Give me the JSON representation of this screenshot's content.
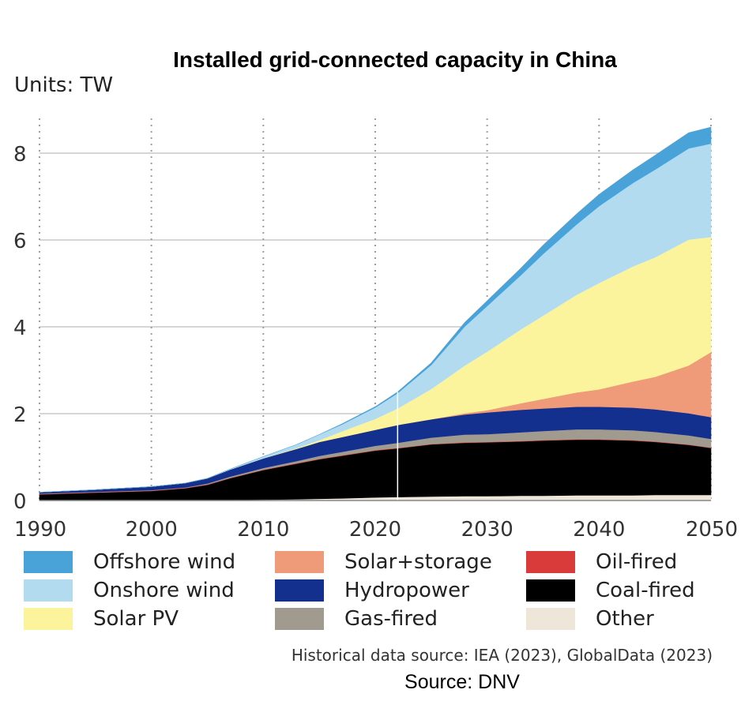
{
  "title": "Installed grid-connected capacity in China",
  "units": "Units: TW",
  "historical_note": "Historical data source: IEA (2023), GlobalData (2023)",
  "source": "Source: DNV",
  "chart_data": {
    "type": "area",
    "stacked": true,
    "title": "Installed grid-connected capacity in China",
    "ylabel": "TW",
    "xlim": [
      1990,
      2050
    ],
    "ylim": [
      0,
      8.8
    ],
    "x_ticks": [
      1990,
      2000,
      2010,
      2020,
      2030,
      2040,
      2050
    ],
    "y_ticks": [
      0,
      2,
      4,
      6,
      8
    ],
    "history_end": 2022,
    "x": [
      1990,
      1995,
      2000,
      2003,
      2005,
      2007,
      2010,
      2013,
      2015,
      2017,
      2020,
      2022,
      2025,
      2028,
      2030,
      2033,
      2035,
      2038,
      2040,
      2043,
      2045,
      2048,
      2050
    ],
    "series": [
      {
        "name": "Other",
        "color": "#efe6da",
        "values": [
          0,
          0,
          0,
          0,
          0,
          0.01,
          0.02,
          0.03,
          0.04,
          0.05,
          0.07,
          0.08,
          0.09,
          0.1,
          0.1,
          0.11,
          0.11,
          0.12,
          0.12,
          0.12,
          0.13,
          0.13,
          0.13
        ]
      },
      {
        "name": "Coal-fired",
        "color": "#000000",
        "values": [
          0.14,
          0.18,
          0.22,
          0.28,
          0.36,
          0.5,
          0.68,
          0.82,
          0.91,
          0.98,
          1.08,
          1.12,
          1.2,
          1.23,
          1.24,
          1.25,
          1.27,
          1.28,
          1.28,
          1.26,
          1.22,
          1.15,
          1.08
        ]
      },
      {
        "name": "Oil-fired",
        "color": "#d93b3b",
        "values": [
          0.01,
          0.01,
          0.01,
          0.01,
          0.01,
          0.01,
          0.01,
          0.01,
          0.01,
          0.01,
          0.01,
          0.01,
          0.01,
          0.01,
          0.01,
          0.01,
          0.01,
          0.01,
          0.01,
          0.01,
          0.01,
          0.01,
          0.01
        ]
      },
      {
        "name": "Gas-fired",
        "color": "#a19b8f",
        "values": [
          0.01,
          0.01,
          0.01,
          0.01,
          0.02,
          0.03,
          0.04,
          0.05,
          0.07,
          0.08,
          0.1,
          0.12,
          0.15,
          0.18,
          0.18,
          0.2,
          0.21,
          0.23,
          0.23,
          0.23,
          0.22,
          0.21,
          0.2
        ]
      },
      {
        "name": "Hydropower",
        "color": "#13308f",
        "values": [
          0.03,
          0.05,
          0.08,
          0.1,
          0.12,
          0.16,
          0.22,
          0.28,
          0.32,
          0.34,
          0.37,
          0.41,
          0.42,
          0.46,
          0.5,
          0.52,
          0.52,
          0.52,
          0.52,
          0.52,
          0.52,
          0.51,
          0.5
        ]
      },
      {
        "name": "Solar+storage",
        "color": "#ef9a78",
        "values": [
          0,
          0,
          0,
          0,
          0,
          0,
          0,
          0,
          0,
          0,
          0,
          0,
          0,
          0.03,
          0.05,
          0.15,
          0.22,
          0.33,
          0.4,
          0.6,
          0.75,
          1.1,
          1.5
        ]
      },
      {
        "name": "Solar PV",
        "color": "#fcf49c",
        "values": [
          0,
          0,
          0,
          0,
          0,
          0,
          0.001,
          0.02,
          0.04,
          0.13,
          0.25,
          0.38,
          0.7,
          1.1,
          1.35,
          1.7,
          1.92,
          2.25,
          2.45,
          2.65,
          2.75,
          2.9,
          2.65
        ]
      },
      {
        "name": "Onshore wind",
        "color": "#b2dbf0",
        "values": [
          0,
          0,
          0,
          0,
          0,
          0.01,
          0.04,
          0.08,
          0.13,
          0.16,
          0.26,
          0.35,
          0.55,
          0.9,
          1.05,
          1.25,
          1.42,
          1.62,
          1.77,
          1.92,
          2.02,
          2.1,
          2.15
        ]
      },
      {
        "name": "Offshore wind",
        "color": "#4aa3d8",
        "values": [
          0,
          0,
          0,
          0,
          0,
          0,
          0,
          0,
          0,
          0.01,
          0.02,
          0.03,
          0.05,
          0.09,
          0.12,
          0.16,
          0.2,
          0.24,
          0.27,
          0.3,
          0.33,
          0.36,
          0.38
        ]
      }
    ]
  },
  "legend": [
    {
      "label": "Offshore wind",
      "color": "#4aa3d8"
    },
    {
      "label": "Solar+storage",
      "color": "#ef9a78"
    },
    {
      "label": "Oil-fired",
      "color": "#d93b3b"
    },
    {
      "label": "Onshore wind",
      "color": "#b2dbf0"
    },
    {
      "label": "Hydropower",
      "color": "#13308f"
    },
    {
      "label": "Coal-fired",
      "color": "#000000"
    },
    {
      "label": "Solar PV",
      "color": "#fcf49c"
    },
    {
      "label": "Gas-fired",
      "color": "#a19b8f"
    },
    {
      "label": "Other",
      "color": "#efe6da"
    }
  ]
}
